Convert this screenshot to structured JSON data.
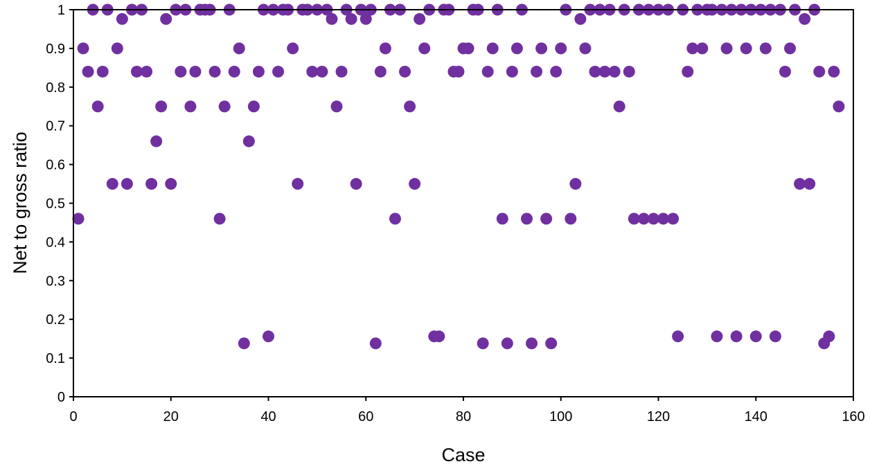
{
  "chart_data": {
    "type": "scatter",
    "title": "",
    "xlabel": "Case",
    "ylabel": "Net to gross ratio",
    "xlim": [
      0,
      160
    ],
    "ylim": [
      0,
      1
    ],
    "xticks": [
      0,
      20,
      40,
      60,
      80,
      100,
      120,
      140,
      160
    ],
    "yticks": [
      0,
      0.1,
      0.2,
      0.3,
      0.4,
      0.5,
      0.6,
      0.7,
      0.8,
      0.9,
      1
    ],
    "grid": false,
    "legend": "none",
    "marker_color": "#7030a0",
    "series": [
      {
        "x": [
          1,
          2,
          3,
          4,
          5,
          6,
          7,
          8,
          9,
          10,
          11,
          12,
          13,
          14,
          15,
          16,
          17,
          18,
          19,
          20,
          21,
          22,
          23,
          24,
          25,
          26,
          27,
          28,
          29,
          30,
          31,
          32,
          33,
          34,
          35,
          36,
          37,
          38,
          39,
          40,
          41,
          42,
          43,
          44,
          45,
          46,
          47,
          48,
          49,
          50,
          51,
          52,
          53,
          54,
          55,
          56,
          57,
          58,
          59,
          60,
          61,
          62,
          63,
          64,
          65,
          66,
          67,
          68,
          69,
          70,
          71,
          72,
          73,
          74,
          75,
          76,
          77,
          78,
          79,
          80,
          81,
          82,
          83,
          84,
          85,
          86,
          87,
          88,
          89,
          90,
          91,
          92,
          93,
          94,
          95,
          96,
          97,
          98,
          99,
          100,
          101,
          102,
          103,
          104,
          105,
          106,
          107,
          108,
          109,
          110,
          111,
          112,
          113,
          114,
          115,
          116,
          117,
          118,
          119,
          120,
          121,
          122,
          123,
          124,
          125,
          126,
          127,
          128,
          129,
          130,
          131,
          132,
          133,
          134,
          135,
          136,
          137,
          138,
          139,
          140,
          141,
          142,
          143,
          144,
          145,
          146,
          147,
          148,
          149,
          150,
          151,
          152,
          153,
          154,
          155,
          156,
          157
        ],
        "y": [
          0.46,
          0.9,
          0.84,
          1,
          0.75,
          0.84,
          1,
          0.55,
          0.9,
          0.976,
          0.55,
          1,
          0.84,
          1,
          0.84,
          0.55,
          0.66,
          0.75,
          0.976,
          0.55,
          1,
          0.84,
          1,
          0.75,
          0.84,
          1,
          1,
          1,
          0.84,
          0.46,
          0.75,
          1,
          0.84,
          0.9,
          0.138,
          0.66,
          0.75,
          0.84,
          1,
          0.156,
          1,
          0.84,
          1,
          1,
          0.9,
          0.55,
          1,
          1,
          0.84,
          1,
          0.84,
          1,
          0.976,
          0.75,
          0.84,
          1,
          0.976,
          0.55,
          1,
          0.976,
          1,
          0.138,
          0.84,
          0.9,
          1,
          0.46,
          1,
          0.84,
          0.75,
          0.55,
          0.976,
          0.9,
          1,
          0.156,
          0.156,
          1,
          1,
          0.84,
          0.84,
          0.9,
          0.9,
          1,
          1,
          0.138,
          0.84,
          0.9,
          1,
          0.46,
          0.138,
          0.84,
          0.9,
          1,
          0.46,
          0.138,
          0.84,
          0.9,
          0.46,
          0.138,
          0.84,
          0.9,
          1,
          0.46,
          0.55,
          0.976,
          0.9,
          1,
          0.84,
          1,
          0.84,
          1,
          0.84,
          0.75,
          1,
          0.84,
          0.46,
          1,
          0.46,
          1,
          0.46,
          1,
          0.46,
          1,
          0.46,
          0.156,
          1,
          0.84,
          0.9,
          1,
          0.9,
          1,
          1,
          0.156,
          1,
          0.9,
          1,
          0.156,
          1,
          0.9,
          1,
          0.156,
          1,
          0.9,
          1,
          0.156,
          1,
          0.84,
          0.9,
          1,
          0.55,
          0.976,
          0.55,
          1,
          0.84,
          0.138,
          0.156,
          0.84,
          0.75
        ]
      }
    ]
  }
}
